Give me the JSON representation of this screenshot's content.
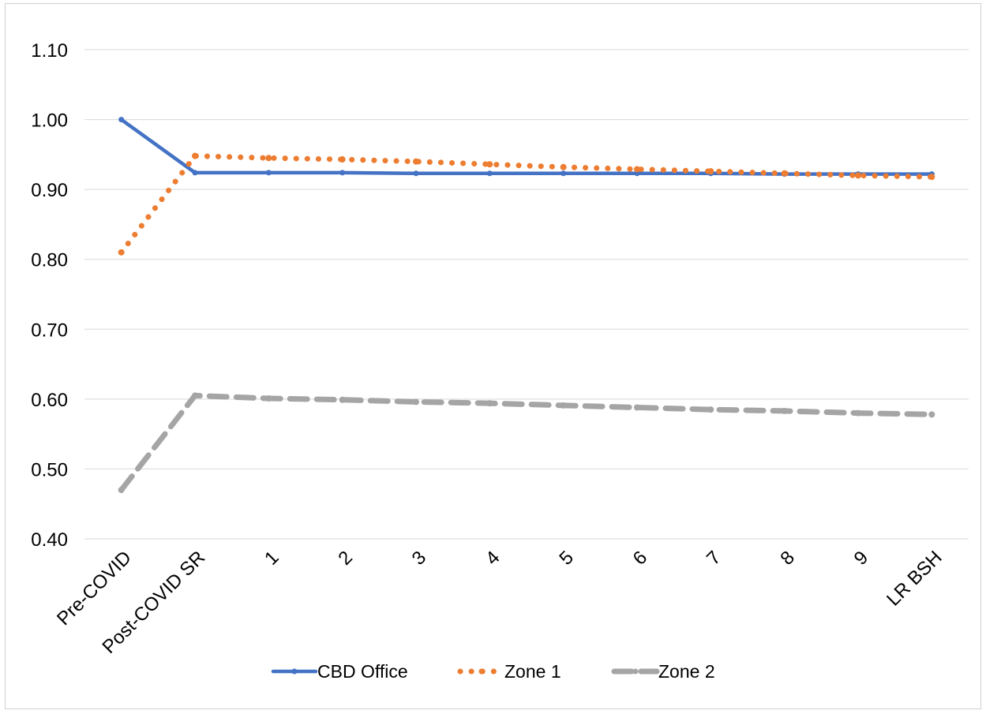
{
  "chart_data": {
    "type": "line",
    "title": "",
    "xlabel": "",
    "ylabel": "",
    "categories": [
      "Pre-COVID",
      "Post-COVID SR",
      "1",
      "2",
      "3",
      "4",
      "5",
      "6",
      "7",
      "8",
      "9",
      "LR BSH"
    ],
    "ylim": [
      0.4,
      1.1
    ],
    "yticks": [
      "0.40",
      "0.50",
      "0.60",
      "0.70",
      "0.80",
      "0.90",
      "1.00",
      "1.10"
    ],
    "grid": true,
    "legend_position": "bottom",
    "series": [
      {
        "name": "CBD Office",
        "color": "#4472C4",
        "style": "solid",
        "values": [
          1.0,
          0.924,
          0.924,
          0.924,
          0.923,
          0.923,
          0.923,
          0.923,
          0.923,
          0.922,
          0.922,
          0.922
        ]
      },
      {
        "name": "Zone 1",
        "color": "#ED7D31",
        "style": "dotted",
        "values": [
          0.81,
          0.948,
          0.945,
          0.943,
          0.94,
          0.936,
          0.932,
          0.929,
          0.926,
          0.923,
          0.92,
          0.918
        ]
      },
      {
        "name": "Zone 2",
        "color": "#A5A5A5",
        "style": "dashed",
        "values": [
          0.47,
          0.605,
          0.601,
          0.599,
          0.596,
          0.594,
          0.591,
          0.588,
          0.585,
          0.583,
          0.58,
          0.578
        ]
      }
    ]
  }
}
